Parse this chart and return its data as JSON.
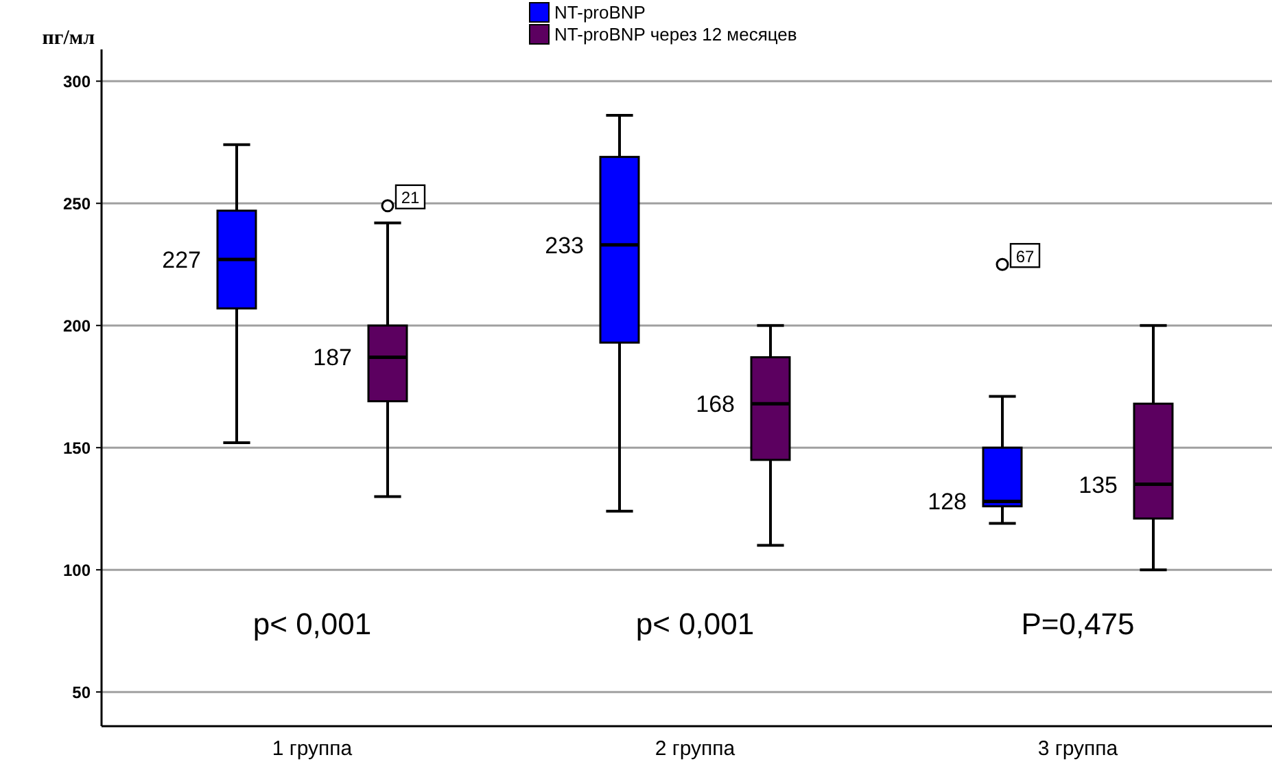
{
  "chart_data": {
    "type": "box",
    "ylabel": "пг/мл",
    "categories": [
      "1 группа",
      "2 группа",
      "3 группа"
    ],
    "ylim": [
      36,
      313
    ],
    "yticks": [
      50,
      100,
      150,
      200,
      250,
      300
    ],
    "grid": "y",
    "legend": "top",
    "series": [
      {
        "name": "NT-proBNP",
        "color": "#0000ff",
        "value_labels": [
          "227",
          "233",
          "128"
        ],
        "boxes": [
          {
            "low": 152,
            "q1": 207,
            "median": 227,
            "q3": 247,
            "high": 274
          },
          {
            "low": 124,
            "q1": 193,
            "median": 233,
            "q3": 269,
            "high": 286
          },
          {
            "low": 119,
            "q1": 126,
            "median": 128,
            "q3": 150,
            "high": 171,
            "outliers": [
              225
            ]
          }
        ]
      },
      {
        "name": "NT-proBNP через 12 месяцев",
        "color": "#5c0060",
        "value_labels": [
          "187",
          "168",
          "135"
        ],
        "boxes": [
          {
            "low": 130,
            "q1": 169,
            "median": 187,
            "q3": 200,
            "high": 242,
            "outliers": [
              249
            ]
          },
          {
            "low": 110,
            "q1": 145,
            "median": 168,
            "q3": 187,
            "high": 200
          },
          {
            "low": 100,
            "q1": 121,
            "median": 135,
            "q3": 168,
            "high": 200
          }
        ]
      }
    ],
    "annotations": [
      "21",
      "67",
      "p< 0,001",
      "p< 0,001",
      "P=0,475"
    ]
  }
}
